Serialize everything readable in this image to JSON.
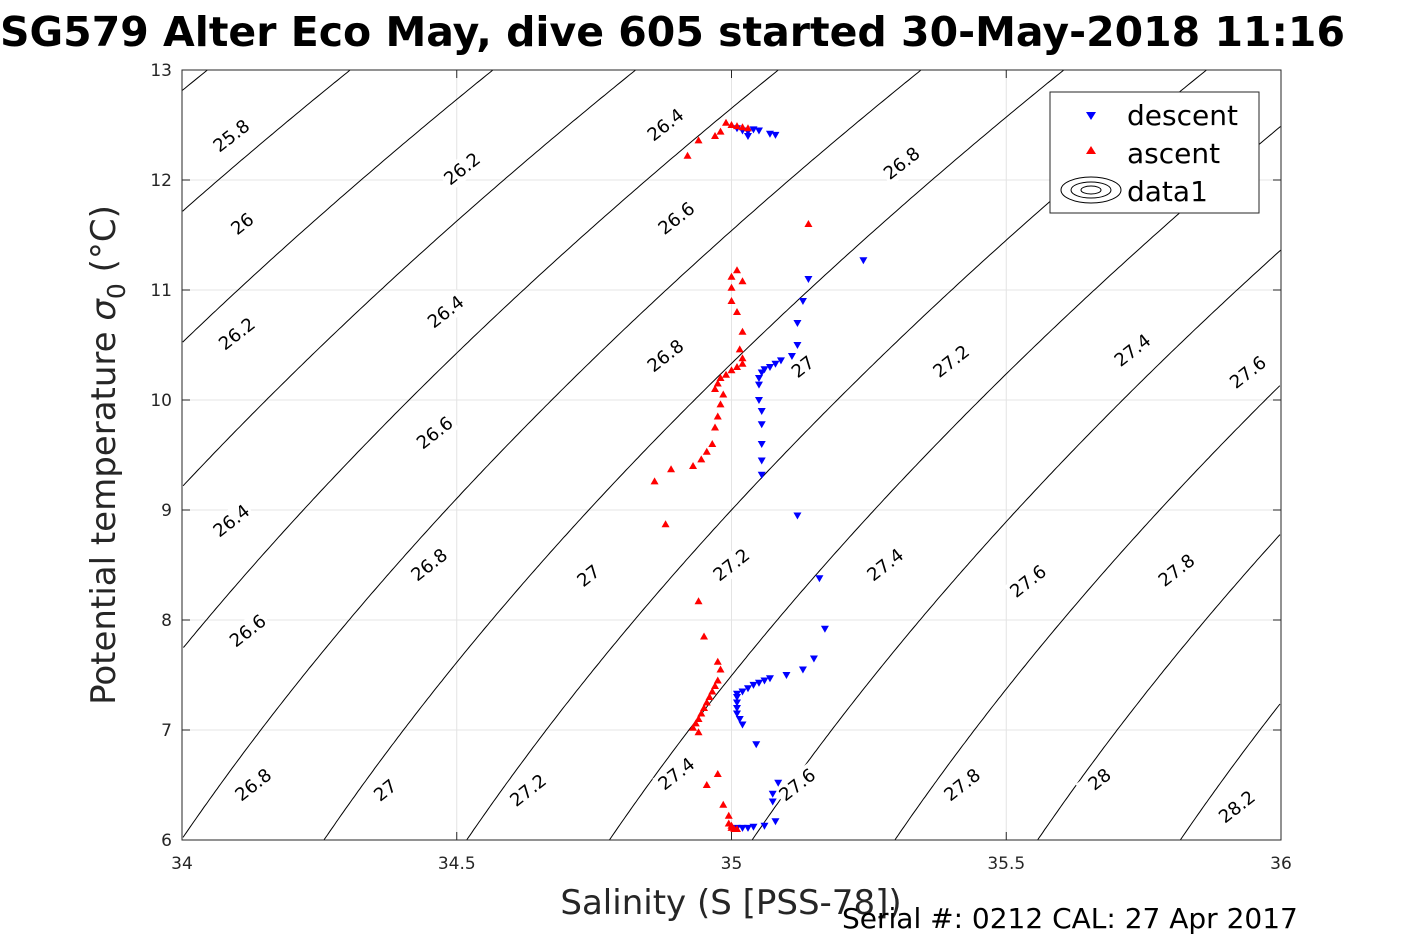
{
  "title": "SG579 Alter Eco May, dive 605 started 30-May-2018 11:16",
  "footer": "Serial #: 0212  CAL: 27 Apr 2017",
  "chart_data": {
    "type": "scatter",
    "xlabel": "Salinity (S [PSS-78])",
    "ylabel_main": "Potential temperature ",
    "ylabel_symbol": "σ",
    "ylabel_sub": "0",
    "ylabel_unit": " (°C)",
    "xlim": [
      34,
      36
    ],
    "ylim": [
      6,
      13
    ],
    "xticks": [
      34,
      34.5,
      35,
      35.5,
      36
    ],
    "xtick_labels": [
      "34",
      "34.5",
      "35",
      "35.5",
      "36"
    ],
    "yticks": [
      6,
      7,
      8,
      9,
      10,
      11,
      12,
      13
    ],
    "ytick_labels": [
      "6",
      "7",
      "8",
      "9",
      "10",
      "11",
      "12",
      "13"
    ],
    "grid": true,
    "legend_position": "top-right",
    "legend": [
      {
        "label": "descent",
        "marker": "triangle-down",
        "color": "#0000ff"
      },
      {
        "label": "ascent",
        "marker": "triangle-up",
        "color": "#ff0000"
      },
      {
        "label": "data1",
        "marker": "contour",
        "color": "#000000"
      }
    ],
    "contours": {
      "levels": [
        25.8,
        26,
        26.2,
        26.4,
        26.6,
        26.8,
        27,
        27.2,
        27.4,
        27.6,
        27.8,
        28,
        28.2
      ],
      "labels": [
        {
          "text": "25.8",
          "s": 34.09,
          "t": 12.4
        },
        {
          "text": "26",
          "s": 34.11,
          "t": 11.6
        },
        {
          "text": "26.2",
          "s": 34.51,
          "t": 12.1
        },
        {
          "text": "26.4",
          "s": 34.88,
          "t": 12.5
        },
        {
          "text": "26.2",
          "s": 34.1,
          "t": 10.6
        },
        {
          "text": "26.4",
          "s": 34.48,
          "t": 10.8
        },
        {
          "text": "26.6",
          "s": 34.9,
          "t": 11.65
        },
        {
          "text": "26.8",
          "s": 35.31,
          "t": 12.15
        },
        {
          "text": "27",
          "s": 35.62,
          "t": 12.1
        },
        {
          "text": "26.4",
          "s": 34.09,
          "t": 8.9
        },
        {
          "text": "26.6",
          "s": 34.46,
          "t": 9.7
        },
        {
          "text": "26.8",
          "s": 34.88,
          "t": 10.4
        },
        {
          "text": "27",
          "s": 35.13,
          "t": 10.3
        },
        {
          "text": "27.2",
          "s": 35.4,
          "t": 10.35
        },
        {
          "text": "27.4",
          "s": 35.73,
          "t": 10.45
        },
        {
          "text": "27.6",
          "s": 35.94,
          "t": 10.25
        },
        {
          "text": "26.6",
          "s": 34.12,
          "t": 7.9
        },
        {
          "text": "26.8",
          "s": 34.45,
          "t": 8.5
        },
        {
          "text": "27",
          "s": 34.74,
          "t": 8.4
        },
        {
          "text": "27.2",
          "s": 35.0,
          "t": 8.5
        },
        {
          "text": "27.4",
          "s": 35.28,
          "t": 8.5
        },
        {
          "text": "27.6",
          "s": 35.54,
          "t": 8.35
        },
        {
          "text": "27.8",
          "s": 35.81,
          "t": 8.45
        },
        {
          "text": "26.8",
          "s": 34.13,
          "t": 6.5
        },
        {
          "text": "27",
          "s": 34.37,
          "t": 6.45
        },
        {
          "text": "27.2",
          "s": 34.63,
          "t": 6.45
        },
        {
          "text": "27.4",
          "s": 34.9,
          "t": 6.6
        },
        {
          "text": "27.6",
          "s": 35.12,
          "t": 6.5
        },
        {
          "text": "27.8",
          "s": 35.42,
          "t": 6.5
        },
        {
          "text": "28",
          "s": 35.67,
          "t": 6.55
        },
        {
          "text": "28.2",
          "s": 35.92,
          "t": 6.3
        }
      ]
    },
    "series": [
      {
        "name": "descent",
        "color": "#0000ff",
        "marker": "triangle-down",
        "points": [
          [
            35.01,
            12.47
          ],
          [
            35.02,
            12.45
          ],
          [
            35.03,
            12.44
          ],
          [
            35.04,
            12.46
          ],
          [
            35.05,
            12.45
          ],
          [
            35.07,
            12.42
          ],
          [
            35.08,
            12.41
          ],
          [
            35.03,
            12.4
          ],
          [
            35.24,
            11.27
          ],
          [
            35.14,
            11.1
          ],
          [
            35.13,
            10.9
          ],
          [
            35.12,
            10.7
          ],
          [
            35.12,
            10.5
          ],
          [
            35.11,
            10.4
          ],
          [
            35.09,
            10.36
          ],
          [
            35.08,
            10.33
          ],
          [
            35.07,
            10.3
          ],
          [
            35.06,
            10.28
          ],
          [
            35.055,
            10.25
          ],
          [
            35.05,
            10.2
          ],
          [
            35.05,
            10.14
          ],
          [
            35.05,
            10.0
          ],
          [
            35.055,
            9.9
          ],
          [
            35.055,
            9.78
          ],
          [
            35.055,
            9.6
          ],
          [
            35.055,
            9.45
          ],
          [
            35.055,
            9.32
          ],
          [
            35.12,
            8.95
          ],
          [
            35.16,
            8.38
          ],
          [
            35.17,
            7.92
          ],
          [
            35.15,
            7.65
          ],
          [
            35.13,
            7.55
          ],
          [
            35.1,
            7.5
          ],
          [
            35.07,
            7.47
          ],
          [
            35.06,
            7.45
          ],
          [
            35.05,
            7.43
          ],
          [
            35.04,
            7.41
          ],
          [
            35.03,
            7.38
          ],
          [
            35.02,
            7.35
          ],
          [
            35.01,
            7.33
          ],
          [
            35.01,
            7.3
          ],
          [
            35.01,
            7.25
          ],
          [
            35.01,
            7.2
          ],
          [
            35.01,
            7.15
          ],
          [
            35.015,
            7.1
          ],
          [
            35.02,
            7.05
          ],
          [
            35.045,
            6.87
          ],
          [
            35.085,
            6.52
          ],
          [
            35.075,
            6.42
          ],
          [
            35.075,
            6.35
          ],
          [
            35.08,
            6.17
          ],
          [
            35.06,
            6.13
          ],
          [
            35.04,
            6.12
          ],
          [
            35.03,
            6.11
          ],
          [
            35.02,
            6.11
          ],
          [
            35.01,
            6.11
          ]
        ]
      },
      {
        "name": "ascent",
        "color": "#ff0000",
        "marker": "triangle-up",
        "points": [
          [
            34.99,
            12.52
          ],
          [
            35.0,
            12.5
          ],
          [
            35.01,
            12.49
          ],
          [
            35.02,
            12.48
          ],
          [
            35.03,
            12.47
          ],
          [
            34.98,
            12.44
          ],
          [
            34.97,
            12.4
          ],
          [
            34.94,
            12.36
          ],
          [
            34.92,
            12.22
          ],
          [
            35.14,
            11.6
          ],
          [
            35.01,
            11.18
          ],
          [
            35.0,
            11.12
          ],
          [
            35.02,
            11.08
          ],
          [
            35.0,
            11.02
          ],
          [
            35.0,
            10.9
          ],
          [
            35.01,
            10.8
          ],
          [
            35.02,
            10.62
          ],
          [
            35.015,
            10.46
          ],
          [
            35.02,
            10.38
          ],
          [
            35.02,
            10.33
          ],
          [
            35.01,
            10.3
          ],
          [
            35.0,
            10.27
          ],
          [
            34.99,
            10.23
          ],
          [
            34.98,
            10.2
          ],
          [
            34.975,
            10.15
          ],
          [
            34.97,
            10.1
          ],
          [
            34.985,
            10.05
          ],
          [
            34.98,
            9.96
          ],
          [
            34.975,
            9.85
          ],
          [
            34.97,
            9.75
          ],
          [
            34.965,
            9.6
          ],
          [
            34.955,
            9.53
          ],
          [
            34.945,
            9.46
          ],
          [
            34.93,
            9.4
          ],
          [
            34.89,
            9.37
          ],
          [
            34.86,
            9.26
          ],
          [
            34.88,
            8.87
          ],
          [
            34.94,
            8.17
          ],
          [
            34.95,
            7.85
          ],
          [
            34.975,
            7.62
          ],
          [
            34.98,
            7.55
          ],
          [
            34.975,
            7.45
          ],
          [
            34.97,
            7.4
          ],
          [
            34.965,
            7.35
          ],
          [
            34.96,
            7.3
          ],
          [
            34.955,
            7.25
          ],
          [
            34.95,
            7.2
          ],
          [
            34.945,
            7.15
          ],
          [
            34.94,
            7.1
          ],
          [
            34.935,
            7.06
          ],
          [
            34.93,
            7.02
          ],
          [
            34.94,
            6.98
          ],
          [
            34.975,
            6.6
          ],
          [
            34.955,
            6.5
          ],
          [
            34.985,
            6.32
          ],
          [
            34.995,
            6.22
          ],
          [
            34.995,
            6.15
          ],
          [
            35.0,
            6.13
          ],
          [
            35.0,
            6.11
          ],
          [
            35.005,
            6.1
          ],
          [
            35.01,
            6.1
          ]
        ]
      }
    ]
  }
}
